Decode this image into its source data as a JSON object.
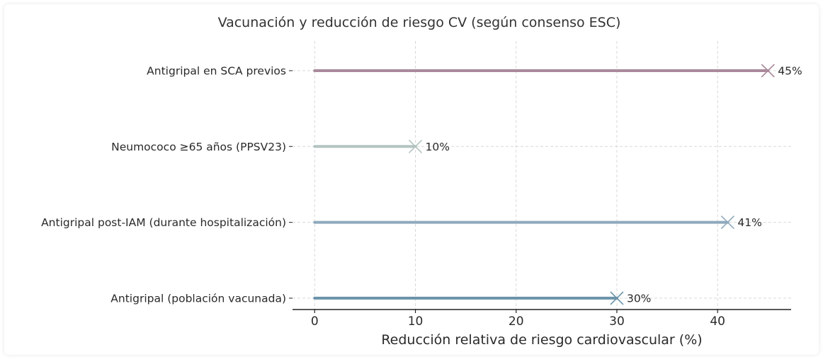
{
  "chart_data": {
    "type": "bar",
    "orientation": "horizontal",
    "style": "lollipop",
    "title": "Vacunación y reducción de riesgo CV (según consenso ESC)",
    "xlabel": "Reducción relativa de riesgo cardiovascular (%)",
    "ylabel": "",
    "xlim": [
      -2.2,
      47.3
    ],
    "xticks": [
      0,
      10,
      20,
      30,
      40
    ],
    "grid": true,
    "categories": [
      "Antigripal en SCA previos",
      "Neumococo ≥65 años (PPSV23)",
      "Antigripal post-IAM (durante hospitalización)",
      "Antigripal (población vacunada)"
    ],
    "values": [
      45,
      10,
      41,
      30
    ],
    "value_labels": [
      "45%",
      "10%",
      "41%",
      "30%"
    ],
    "colors": [
      "#a9899b",
      "#b3c4c1",
      "#8fa9bd",
      "#6a93aa"
    ]
  }
}
